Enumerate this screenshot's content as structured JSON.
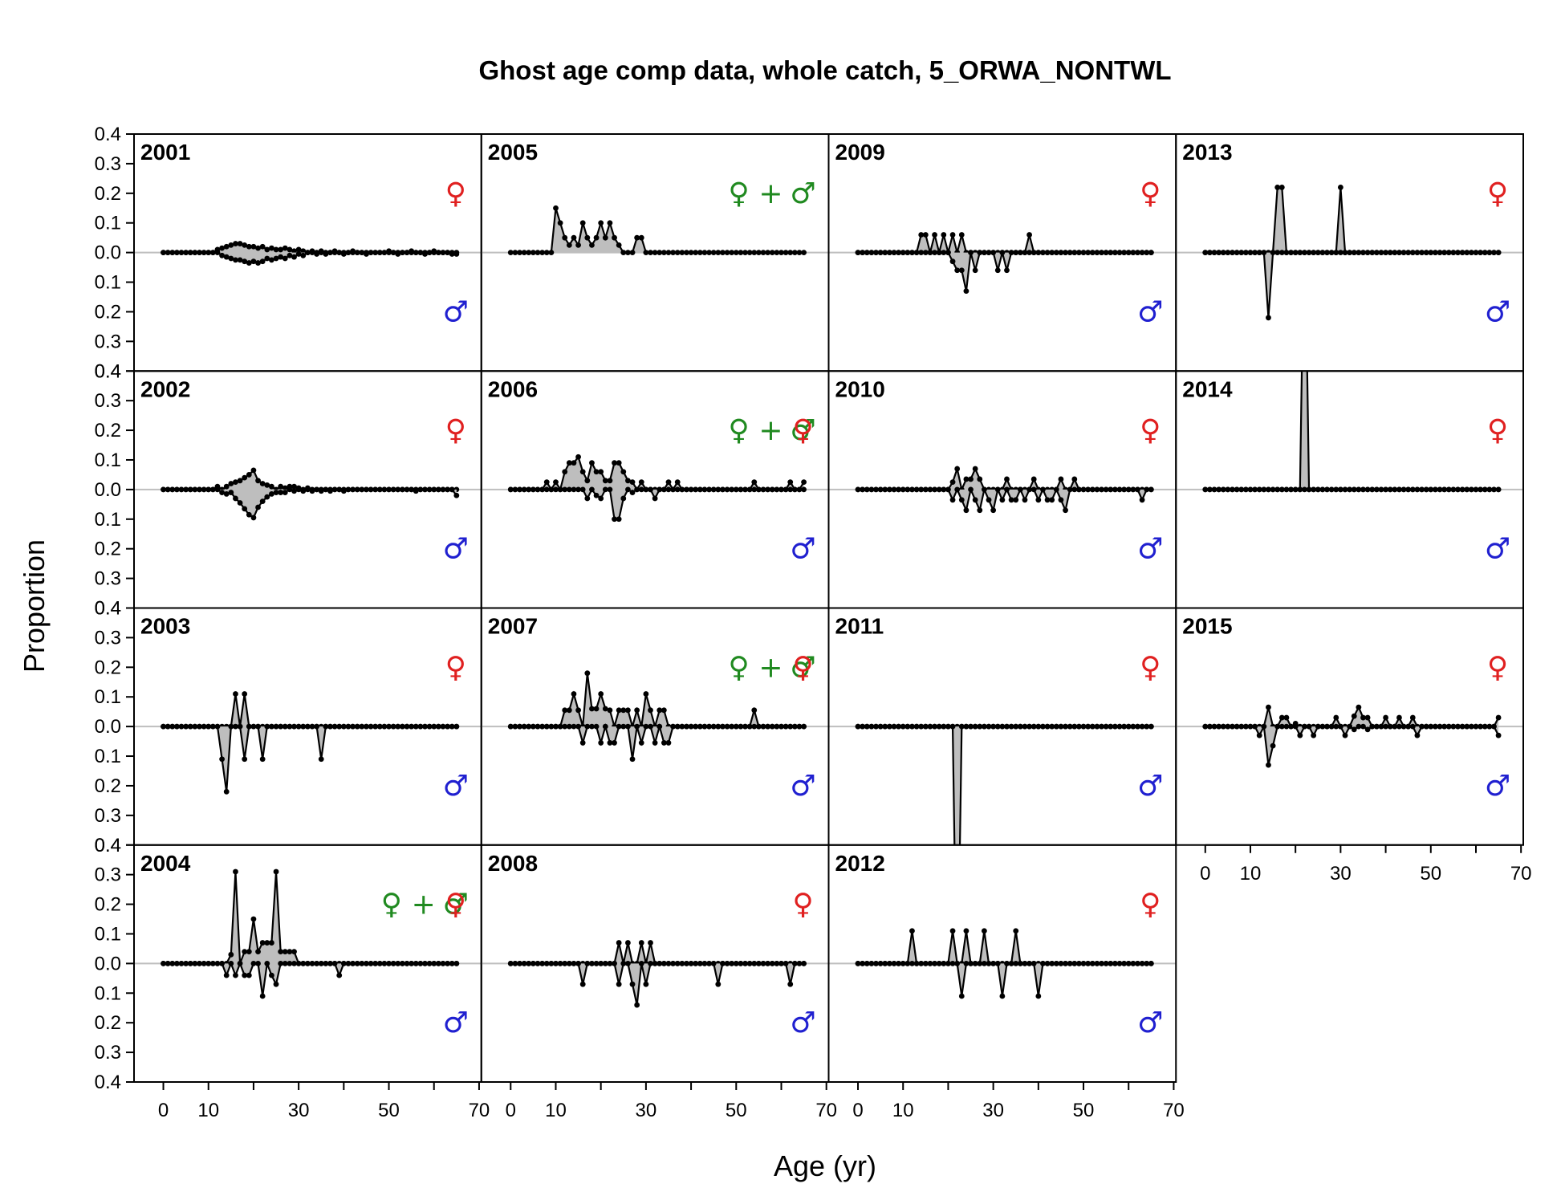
{
  "chart_data": {
    "type": "line",
    "title": "Ghost age comp data, whole catch, 5_ORWA_NONTWL",
    "xlabel": "Age (yr)",
    "ylabel": "Proportion",
    "xlim": [
      -6.5,
      70.5
    ],
    "x_ticks": [
      0,
      10,
      20,
      30,
      40,
      50,
      60,
      70
    ],
    "x_tick_labels": [
      "0",
      "10",
      "30",
      "50",
      "70"
    ],
    "x_tick_label_values": [
      0,
      10,
      30,
      50,
      70
    ],
    "ylim": [
      -0.4,
      0.4
    ],
    "y_ticks": [
      0.4,
      0.3,
      0.2,
      0.1,
      0.0,
      -0.1,
      -0.2,
      -0.3,
      -0.4
    ],
    "y_tick_labels": [
      "0.4",
      "0.3",
      "0.2",
      "0.1",
      "0.0",
      "0.1",
      "0.2",
      "0.3",
      "0.4"
    ],
    "ages": [
      0,
      65
    ],
    "colors": {
      "female": "#e02020",
      "male": "#2020d0",
      "combined": "#208a20",
      "fill": "#bebebe",
      "zero_line": "#bebebe"
    },
    "symbols": {
      "female": "♀",
      "male": "♂",
      "plus": "+"
    },
    "panels": [
      {
        "year": "2001",
        "sex": "split",
        "female": {
          "12": 0.01,
          "13": 0.015,
          "14": 0.02,
          "15": 0.025,
          "16": 0.03,
          "17": 0.03,
          "18": 0.025,
          "19": 0.02,
          "20": 0.02,
          "21": 0.015,
          "22": 0.02,
          "23": 0.01,
          "24": 0.015,
          "25": 0.01,
          "26": 0.01,
          "27": 0.015,
          "28": 0.01,
          "29": 0.005,
          "30": 0.01,
          "31": 0.005,
          "33": 0.005,
          "35": 0.005,
          "38": 0.005,
          "42": 0.005,
          "50": 0.005,
          "55": 0.005,
          "60": 0.005
        },
        "male": {
          "13": 0.01,
          "14": 0.015,
          "15": 0.02,
          "16": 0.025,
          "17": 0.025,
          "18": 0.03,
          "19": 0.035,
          "20": 0.03,
          "21": 0.035,
          "22": 0.03,
          "23": 0.02,
          "24": 0.025,
          "25": 0.02,
          "26": 0.015,
          "27": 0.02,
          "28": 0.01,
          "29": 0.015,
          "30": 0.005,
          "31": 0.01,
          "34": 0.005,
          "36": 0.005,
          "40": 0.005,
          "45": 0.005,
          "52": 0.005,
          "58": 0.005,
          "64": 0.005,
          "65": 0.005
        }
      },
      {
        "year": "2002",
        "sex": "split",
        "female": {
          "12": 0.01,
          "14": 0.01,
          "15": 0.02,
          "16": 0.025,
          "17": 0.03,
          "18": 0.04,
          "19": 0.05,
          "20": 0.065,
          "21": 0.03,
          "22": 0.02,
          "23": 0.015,
          "24": 0.01,
          "26": 0.01,
          "27": 0.005,
          "28": 0.01,
          "29": 0.01,
          "30": 0.005,
          "32": 0.005
        },
        "male": {
          "13": 0.01,
          "14": 0.015,
          "15": 0.01,
          "16": 0.03,
          "17": 0.045,
          "18": 0.065,
          "19": 0.085,
          "20": 0.095,
          "21": 0.06,
          "22": 0.04,
          "23": 0.025,
          "24": 0.015,
          "25": 0.01,
          "26": 0.01,
          "27": 0.01,
          "29": 0.005,
          "31": 0.005,
          "33": 0.005,
          "35": 0.005,
          "37": 0.005,
          "40": 0.005,
          "56": 0.005,
          "65": 0.02
        }
      },
      {
        "year": "2003",
        "sex": "split",
        "female": {
          "16": 0.11,
          "18": 0.11
        },
        "male": {
          "13": 0.11,
          "14": 0.22,
          "18": 0.11,
          "22": 0.11,
          "35": 0.11
        }
      },
      {
        "year": "2004",
        "sex": "split",
        "female": {
          "15": 0.03,
          "16": 0.31,
          "18": 0.04,
          "19": 0.04,
          "20": 0.15,
          "21": 0.04,
          "22": 0.07,
          "23": 0.07,
          "24": 0.07,
          "25": 0.31,
          "26": 0.04,
          "27": 0.04,
          "28": 0.04,
          "29": 0.04
        },
        "male": {
          "14": 0.04,
          "16": 0.04,
          "18": 0.04,
          "19": 0.04,
          "22": 0.11,
          "24": 0.04,
          "25": 0.07,
          "39": 0.04
        }
      },
      {
        "year": "2005",
        "sex": "combined",
        "values": {
          "10": 0.15,
          "11": 0.1,
          "12": 0.05,
          "13": 0.025,
          "14": 0.05,
          "15": 0.025,
          "16": 0.1,
          "17": 0.05,
          "18": 0.025,
          "19": 0.05,
          "20": 0.1,
          "21": 0.05,
          "22": 0.1,
          "23": 0.05,
          "24": 0.025,
          "28": 0.05,
          "29": 0.05
        }
      },
      {
        "year": "2006",
        "sex": "split",
        "female": {
          "8": 0.025,
          "10": 0.025,
          "12": 0.06,
          "13": 0.09,
          "14": 0.09,
          "15": 0.11,
          "16": 0.06,
          "17": 0.03,
          "18": 0.09,
          "19": 0.06,
          "20": 0.06,
          "21": 0.03,
          "22": 0.03,
          "23": 0.09,
          "24": 0.09,
          "25": 0.06,
          "26": 0.03,
          "27": 0.025,
          "29": 0.025,
          "35": 0.025,
          "37": 0.025,
          "54": 0.025,
          "62": 0.025,
          "65": 0.025
        },
        "male": {
          "17": 0.03,
          "19": 0.02,
          "20": 0.03,
          "23": 0.1,
          "24": 0.1,
          "25": 0.03,
          "27": 0.01,
          "32": 0.03
        }
      },
      {
        "year": "2007",
        "sex": "split",
        "female": {
          "12": 0.055,
          "13": 0.055,
          "14": 0.11,
          "15": 0.055,
          "17": 0.18,
          "18": 0.06,
          "19": 0.06,
          "20": 0.11,
          "21": 0.06,
          "22": 0.055,
          "24": 0.055,
          "25": 0.055,
          "26": 0.055,
          "28": 0.055,
          "30": 0.11,
          "31": 0.055,
          "33": 0.055,
          "34": 0.055,
          "54": 0.055
        },
        "male": {
          "16": 0.055,
          "20": 0.055,
          "22": 0.055,
          "23": 0.055,
          "27": 0.11,
          "29": 0.055,
          "32": 0.055,
          "34": 0.055,
          "35": 0.055
        }
      },
      {
        "year": "2008",
        "sex": "split",
        "female": {
          "24": 0.07,
          "26": 0.07,
          "29": 0.07,
          "31": 0.07
        },
        "male": {
          "16": 0.07,
          "24": 0.07,
          "27": 0.07,
          "28": 0.14,
          "30": 0.07,
          "46": 0.07,
          "62": 0.07
        }
      },
      {
        "year": "2009",
        "sex": "split",
        "female": {
          "14": 0.06,
          "15": 0.06,
          "17": 0.06,
          "19": 0.06,
          "21": 0.06,
          "23": 0.06,
          "38": 0.06
        },
        "male": {
          "21": 0.03,
          "22": 0.06,
          "23": 0.06,
          "24": 0.13,
          "26": 0.06,
          "31": 0.06,
          "33": 0.06
        }
      },
      {
        "year": "2010",
        "sex": "split",
        "female": {
          "21": 0.025,
          "22": 0.07,
          "24": 0.035,
          "25": 0.035,
          "26": 0.07,
          "27": 0.035,
          "33": 0.035,
          "39": 0.035,
          "45": 0.035,
          "48": 0.035
        },
        "male": {
          "21": 0.035,
          "23": 0.035,
          "24": 0.07,
          "26": 0.035,
          "27": 0.07,
          "29": 0.035,
          "30": 0.07,
          "32": 0.035,
          "34": 0.035,
          "35": 0.035,
          "37": 0.035,
          "40": 0.035,
          "42": 0.035,
          "43": 0.035,
          "45": 0.035,
          "46": 0.07,
          "63": 0.035
        }
      },
      {
        "year": "2011",
        "sex": "split",
        "female": {},
        "male": {
          "22": 1.0
        }
      },
      {
        "year": "2012",
        "sex": "split",
        "female": {
          "12": 0.11,
          "21": 0.11,
          "24": 0.11,
          "28": 0.11,
          "35": 0.11
        },
        "male": {
          "23": 0.11,
          "32": 0.11,
          "40": 0.11
        }
      },
      {
        "year": "2013",
        "sex": "split",
        "female": {
          "16": 0.22,
          "17": 0.22,
          "30": 0.22
        },
        "male": {
          "14": 0.22
        }
      },
      {
        "year": "2014",
        "sex": "split",
        "female": {
          "22": 1.0
        },
        "male": {}
      },
      {
        "year": "2015",
        "sex": "split",
        "female": {
          "14": 0.065,
          "17": 0.03,
          "18": 0.03,
          "20": 0.01,
          "29": 0.03,
          "33": 0.035,
          "34": 0.065,
          "35": 0.03,
          "36": 0.03,
          "40": 0.03,
          "43": 0.03,
          "46": 0.03,
          "65": 0.03
        },
        "male": {
          "12": 0.03,
          "14": 0.13,
          "15": 0.065,
          "21": 0.03,
          "24": 0.03,
          "31": 0.03,
          "33": 0.01,
          "36": 0.01,
          "47": 0.03,
          "65": 0.03
        }
      }
    ]
  }
}
